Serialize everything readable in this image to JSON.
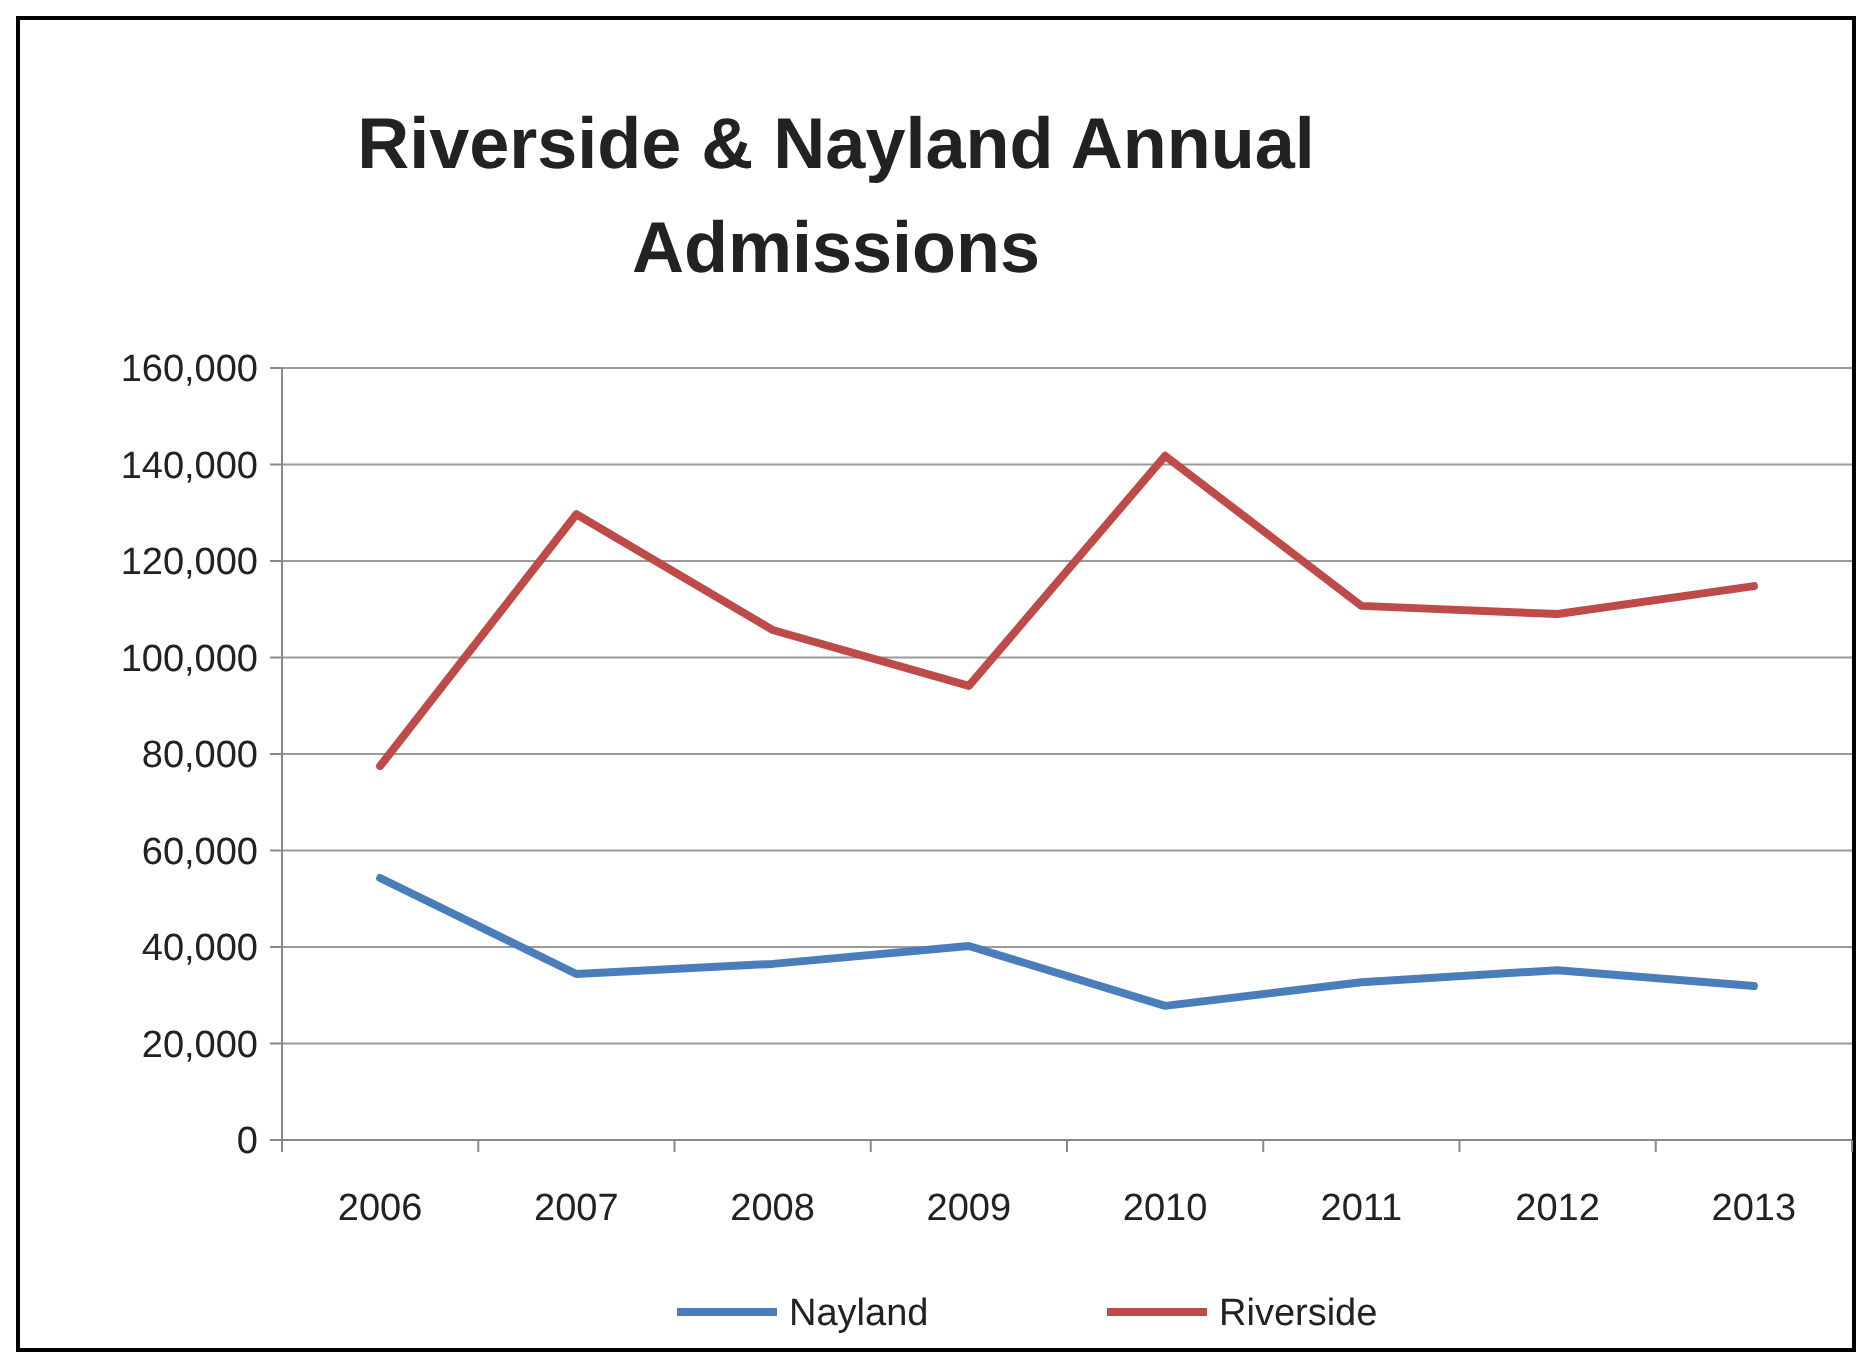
{
  "chart_data": {
    "type": "line",
    "title": "Riverside & Nayland Annual Admissions",
    "categories": [
      "2006",
      "2007",
      "2008",
      "2009",
      "2010",
      "2011",
      "2012",
      "2013"
    ],
    "series": [
      {
        "name": "Nayland",
        "color": "#4a7ebb",
        "values": [
          54300,
          34400,
          36500,
          40200,
          27800,
          32700,
          35200,
          31900
        ]
      },
      {
        "name": "Riverside",
        "color": "#be4b48",
        "values": [
          77500,
          129700,
          105700,
          94100,
          141800,
          110700,
          109000,
          114800
        ]
      }
    ],
    "ylim": [
      0,
      160000
    ],
    "yticks": [
      {
        "value": 0,
        "label": "0"
      },
      {
        "value": 20000,
        "label": "20,000"
      },
      {
        "value": 40000,
        "label": "40,000"
      },
      {
        "value": 60000,
        "label": "60,000"
      },
      {
        "value": 80000,
        "label": "80,000"
      },
      {
        "value": 100000,
        "label": "100,000"
      },
      {
        "value": 120000,
        "label": "120,000"
      },
      {
        "value": 140000,
        "label": "140,000"
      },
      {
        "value": 160000,
        "label": "160,000"
      }
    ],
    "grid": "y",
    "legend": "bottom",
    "marker": "none",
    "line_style": "solid"
  }
}
